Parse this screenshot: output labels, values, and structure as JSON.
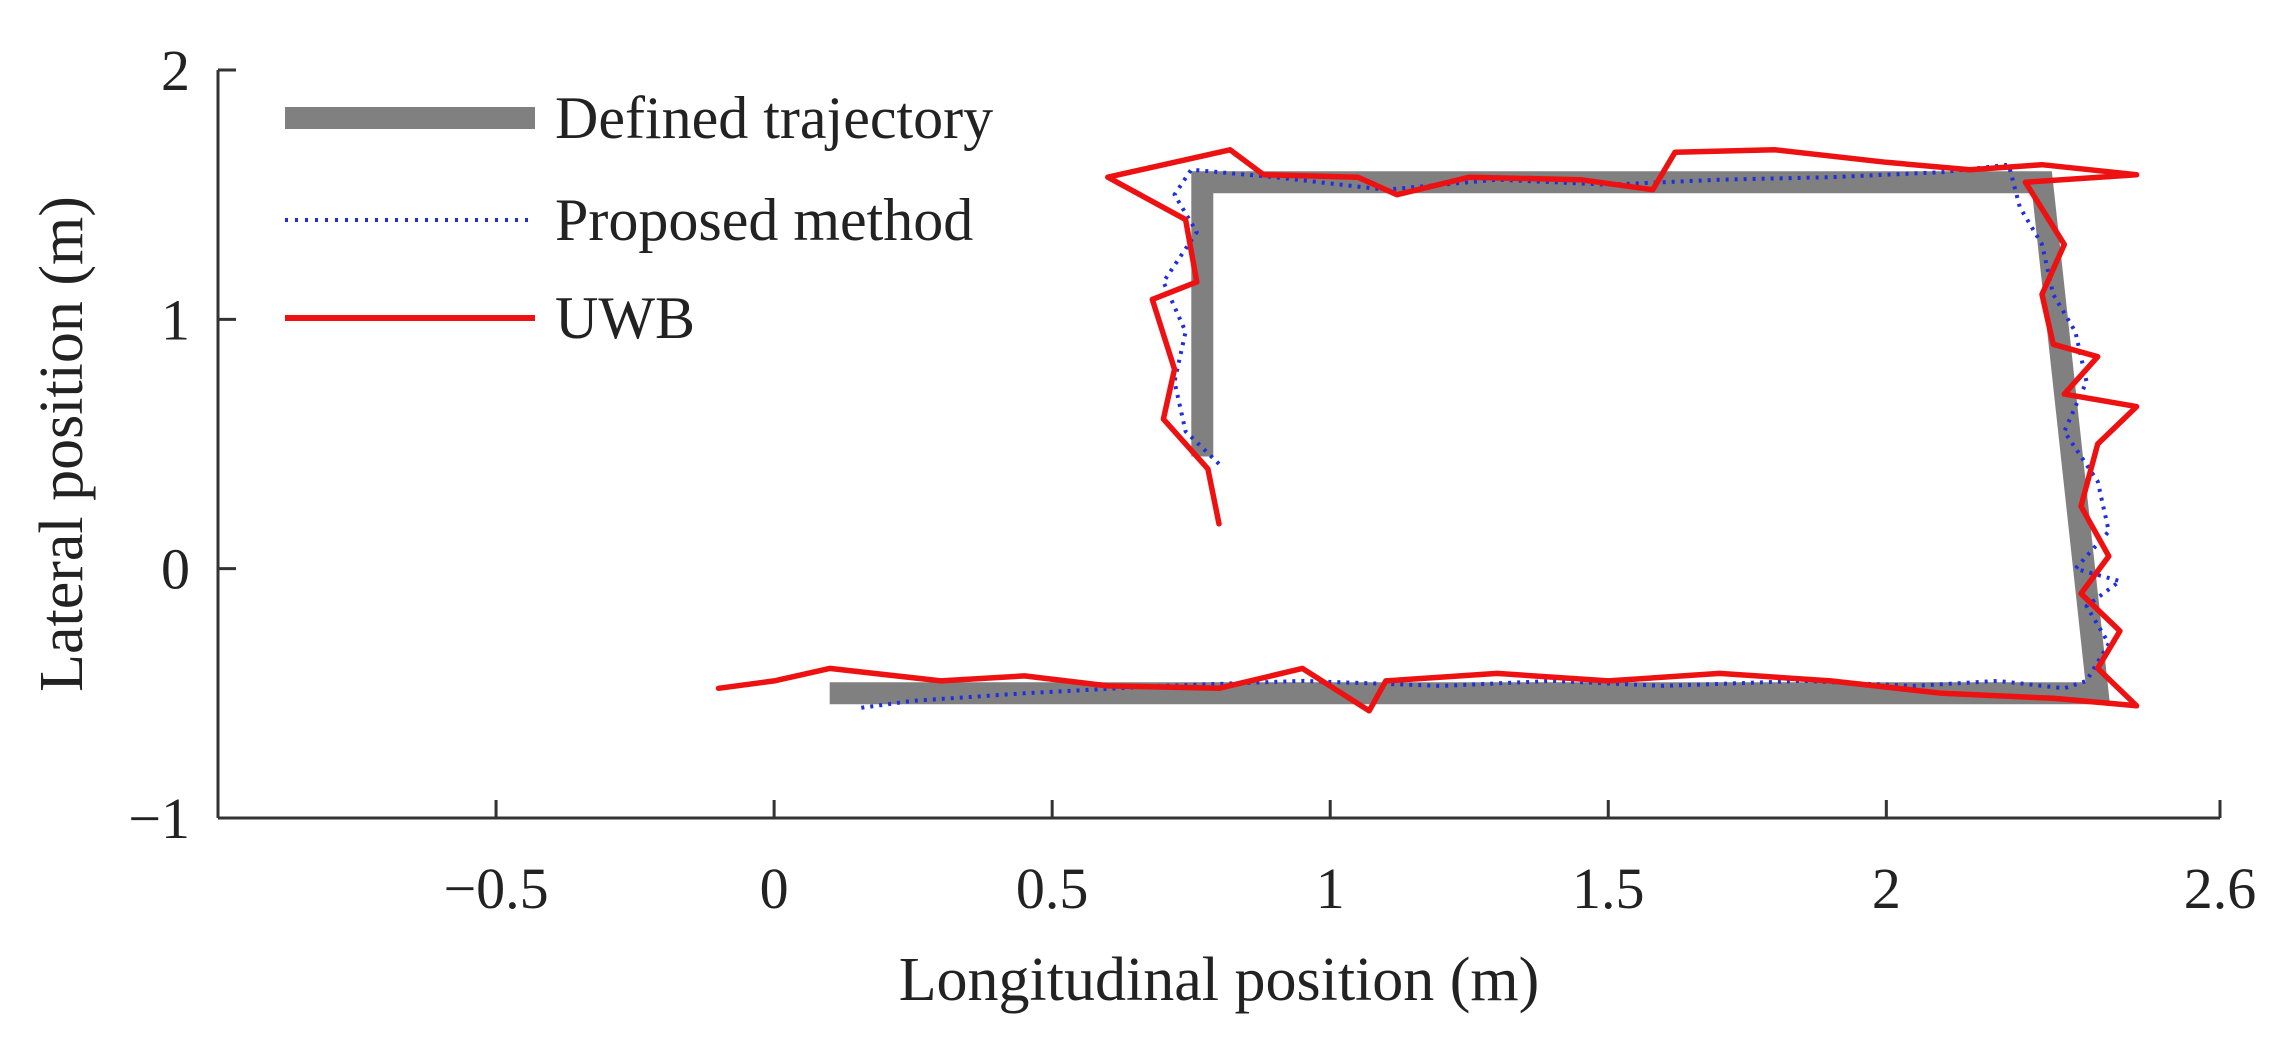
{
  "chart_data": {
    "type": "line",
    "title": "",
    "xlabel": "Longitudinal position (m)",
    "ylabel": "Lateral position (m)",
    "xlim": [
      -1.0,
      2.6
    ],
    "ylim": [
      -1,
      2
    ],
    "grid": false,
    "legend_position": "top-left",
    "x_ticks": [
      {
        "value": -0.5,
        "label": "−0.5"
      },
      {
        "value": 0,
        "label": "0"
      },
      {
        "value": 0.5,
        "label": "0.5"
      },
      {
        "value": 1,
        "label": "1"
      },
      {
        "value": 1.5,
        "label": "1.5"
      },
      {
        "value": 2,
        "label": "2"
      },
      {
        "value": 2.6,
        "label": "2.6"
      }
    ],
    "y_ticks": [
      {
        "value": -1,
        "label": "−1"
      },
      {
        "value": 0,
        "label": "0"
      },
      {
        "value": 1,
        "label": "1"
      },
      {
        "value": 2,
        "label": "2"
      }
    ],
    "series": [
      {
        "name": "Defined trajectory",
        "color": "#808080",
        "style": "thick-solid",
        "points": [
          [
            0.77,
            0.45
          ],
          [
            0.77,
            1.55
          ],
          [
            2.28,
            1.55
          ],
          [
            2.38,
            -0.5
          ],
          [
            0.1,
            -0.5
          ]
        ]
      },
      {
        "name": "Proposed method",
        "color": "#1f2fe0",
        "style": "dotted",
        "points": [
          [
            0.8,
            0.42
          ],
          [
            0.74,
            0.55
          ],
          [
            0.72,
            0.75
          ],
          [
            0.74,
            0.95
          ],
          [
            0.7,
            1.15
          ],
          [
            0.76,
            1.35
          ],
          [
            0.72,
            1.5
          ],
          [
            0.75,
            1.6
          ],
          [
            0.9,
            1.57
          ],
          [
            1.1,
            1.52
          ],
          [
            1.3,
            1.56
          ],
          [
            1.5,
            1.54
          ],
          [
            1.7,
            1.56
          ],
          [
            1.9,
            1.57
          ],
          [
            2.1,
            1.59
          ],
          [
            2.22,
            1.62
          ],
          [
            2.24,
            1.45
          ],
          [
            2.28,
            1.3
          ],
          [
            2.3,
            1.1
          ],
          [
            2.34,
            0.95
          ],
          [
            2.36,
            0.75
          ],
          [
            2.32,
            0.55
          ],
          [
            2.38,
            0.35
          ],
          [
            2.4,
            0.15
          ],
          [
            2.34,
            0.0
          ],
          [
            2.42,
            -0.05
          ],
          [
            2.36,
            -0.15
          ],
          [
            2.4,
            -0.3
          ],
          [
            2.36,
            -0.45
          ],
          [
            2.32,
            -0.48
          ],
          [
            2.2,
            -0.45
          ],
          [
            2.05,
            -0.47
          ],
          [
            1.85,
            -0.45
          ],
          [
            1.6,
            -0.47
          ],
          [
            1.4,
            -0.45
          ],
          [
            1.2,
            -0.47
          ],
          [
            0.95,
            -0.45
          ],
          [
            0.7,
            -0.47
          ],
          [
            0.45,
            -0.5
          ],
          [
            0.25,
            -0.53
          ],
          [
            0.15,
            -0.56
          ]
        ]
      },
      {
        "name": "UWB",
        "color": "#ee1111",
        "style": "solid",
        "points": [
          [
            0.8,
            0.18
          ],
          [
            0.78,
            0.4
          ],
          [
            0.7,
            0.6
          ],
          [
            0.72,
            0.8
          ],
          [
            0.68,
            1.08
          ],
          [
            0.76,
            1.15
          ],
          [
            0.74,
            1.4
          ],
          [
            0.6,
            1.57
          ],
          [
            0.82,
            1.68
          ],
          [
            0.88,
            1.58
          ],
          [
            1.05,
            1.57
          ],
          [
            1.12,
            1.5
          ],
          [
            1.25,
            1.57
          ],
          [
            1.45,
            1.56
          ],
          [
            1.58,
            1.52
          ],
          [
            1.62,
            1.67
          ],
          [
            1.8,
            1.68
          ],
          [
            2.0,
            1.63
          ],
          [
            2.15,
            1.6
          ],
          [
            2.28,
            1.62
          ],
          [
            2.45,
            1.58
          ],
          [
            2.25,
            1.55
          ],
          [
            2.32,
            1.3
          ],
          [
            2.28,
            1.1
          ],
          [
            2.3,
            0.9
          ],
          [
            2.38,
            0.85
          ],
          [
            2.32,
            0.7
          ],
          [
            2.45,
            0.65
          ],
          [
            2.38,
            0.5
          ],
          [
            2.35,
            0.25
          ],
          [
            2.4,
            0.05
          ],
          [
            2.35,
            -0.1
          ],
          [
            2.42,
            -0.25
          ],
          [
            2.38,
            -0.4
          ],
          [
            2.45,
            -0.55
          ],
          [
            2.3,
            -0.52
          ],
          [
            2.1,
            -0.5
          ],
          [
            1.9,
            -0.45
          ],
          [
            1.7,
            -0.42
          ],
          [
            1.5,
            -0.45
          ],
          [
            1.3,
            -0.42
          ],
          [
            1.1,
            -0.45
          ],
          [
            1.07,
            -0.57
          ],
          [
            0.95,
            -0.4
          ],
          [
            0.8,
            -0.48
          ],
          [
            0.6,
            -0.47
          ],
          [
            0.45,
            -0.43
          ],
          [
            0.3,
            -0.45
          ],
          [
            0.1,
            -0.4
          ],
          [
            0.0,
            -0.45
          ],
          [
            -0.1,
            -0.48
          ]
        ]
      }
    ]
  }
}
